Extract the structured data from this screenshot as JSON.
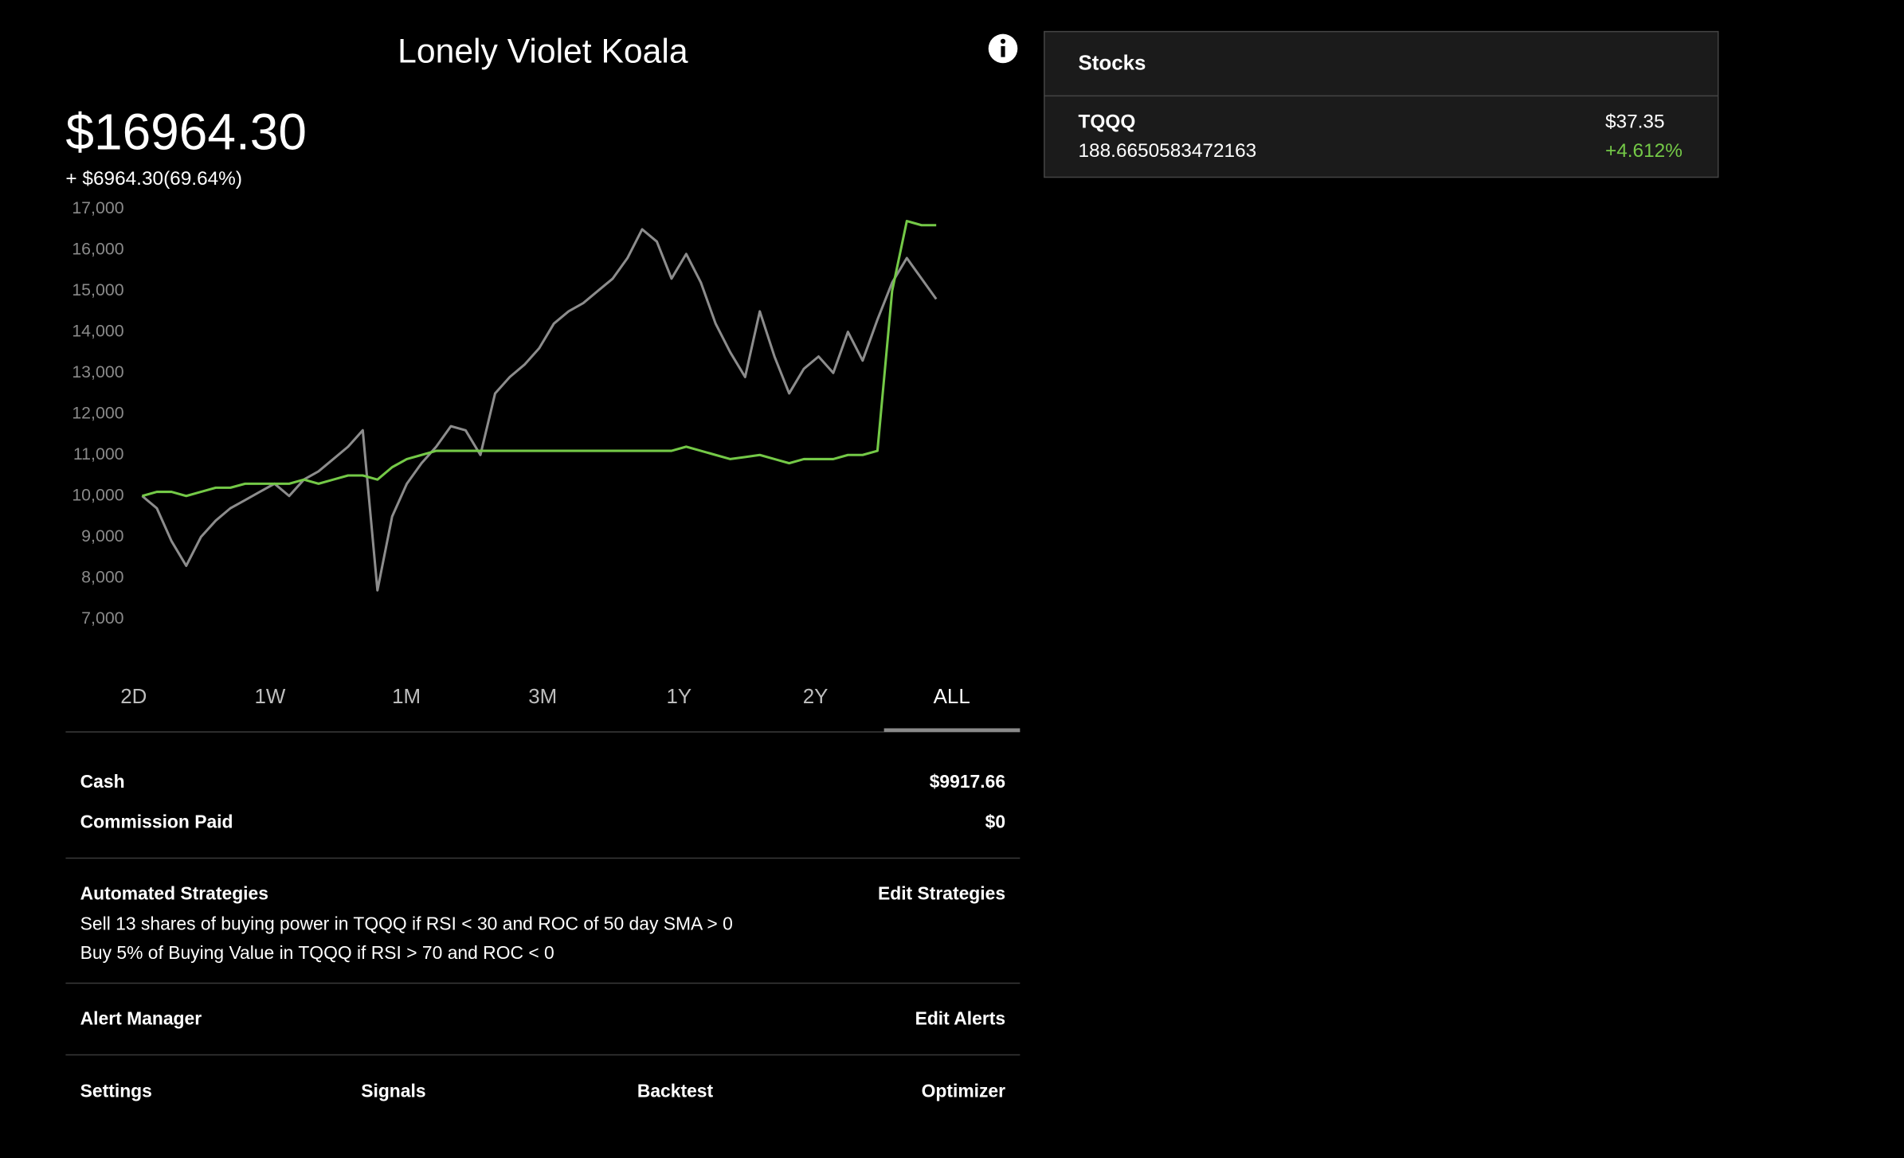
{
  "header": {
    "title": "Lonely Violet Koala",
    "balance": "$16964.30",
    "change": "+ $6964.30(69.64%)"
  },
  "chart_data": {
    "type": "line",
    "ylim": [
      7000,
      17000
    ],
    "yticks": [
      {
        "value": 7000,
        "label": "7,000"
      },
      {
        "value": 8000,
        "label": "8,000"
      },
      {
        "value": 9000,
        "label": "9,000"
      },
      {
        "value": 10000,
        "label": "10,000"
      },
      {
        "value": 11000,
        "label": "11,000"
      },
      {
        "value": 12000,
        "label": "12,000"
      },
      {
        "value": 13000,
        "label": "13,000"
      },
      {
        "value": 14000,
        "label": "14,000"
      },
      {
        "value": 15000,
        "label": "15,000"
      },
      {
        "value": 16000,
        "label": "16,000"
      },
      {
        "value": 17000,
        "label": "17,000"
      }
    ],
    "series": [
      {
        "color": "#8c8c8c",
        "values": [
          10000,
          9700,
          8900,
          8300,
          9000,
          9400,
          9700,
          9900,
          10100,
          10300,
          10000,
          10400,
          10600,
          10900,
          11200,
          11600,
          7700,
          9500,
          10300,
          10800,
          11200,
          11700,
          11600,
          11000,
          12500,
          12900,
          13200,
          13600,
          14200,
          14500,
          14700,
          15000,
          15300,
          15800,
          16500,
          16200,
          15300,
          15900,
          15200,
          14200,
          13500,
          12900,
          14500,
          13400,
          12500,
          13100,
          13400,
          13000,
          14000,
          13300,
          14300,
          15200,
          15800,
          15300,
          14800
        ]
      },
      {
        "color": "#74c947",
        "values": [
          10000,
          10100,
          10100,
          10000,
          10100,
          10200,
          10200,
          10300,
          10300,
          10300,
          10300,
          10400,
          10300,
          10400,
          10500,
          10500,
          10400,
          10700,
          10900,
          11000,
          11100,
          11100,
          11100,
          11100,
          11100,
          11100,
          11100,
          11100,
          11100,
          11100,
          11100,
          11100,
          11100,
          11100,
          11100,
          11100,
          11100,
          11200,
          11100,
          11000,
          10900,
          10950,
          11000,
          10900,
          10800,
          10900,
          10900,
          10900,
          11000,
          11000,
          11100,
          15000,
          16700,
          16600,
          16600
        ]
      }
    ]
  },
  "tabs": [
    "2D",
    "1W",
    "1M",
    "3M",
    "1Y",
    "2Y",
    "ALL"
  ],
  "account": {
    "cash_label": "Cash",
    "cash": "$9917.66",
    "commission_label": "Commission Paid",
    "commission": "$0"
  },
  "strategies": {
    "title": "Automated Strategies",
    "action": "Edit Strategies",
    "items": [
      "Sell 13 shares of buying power in TQQQ if RSI < 30 and ROC of 50 day SMA > 0",
      "Buy 5% of Buying Value in TQQQ if RSI > 70 and ROC < 0"
    ]
  },
  "alerts": {
    "title": "Alert Manager",
    "action": "Edit Alerts"
  },
  "nav": [
    "Settings",
    "Signals",
    "Backtest",
    "Optimizer"
  ],
  "stocks": {
    "title": "Stocks",
    "rows": [
      {
        "symbol": "TQQQ",
        "shares": "188.6650583472163",
        "price": "$37.35",
        "change": "+4.612%"
      }
    ]
  }
}
